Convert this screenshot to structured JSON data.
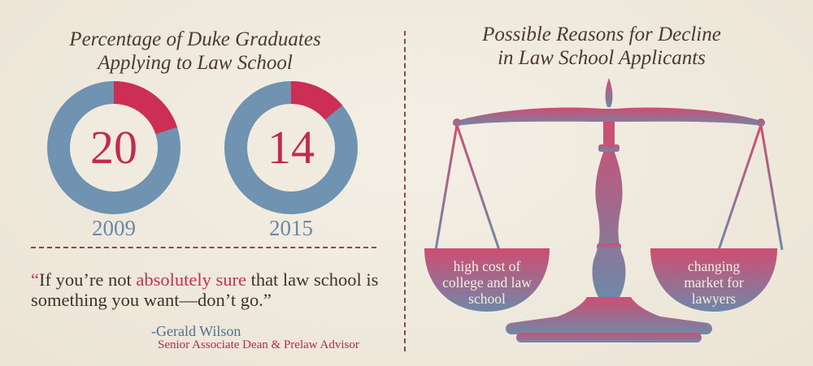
{
  "chart_data": {
    "type": "pie",
    "title_lines": [
      "Percentage of Duke Graduates",
      "Applying to Law School"
    ],
    "series": [
      {
        "label": "2009",
        "value": 20
      },
      {
        "label": "2015",
        "value": 14
      }
    ],
    "colors": {
      "highlight": "#cc2e56",
      "remainder": "#6f93b0",
      "hole": "#f1ebdf",
      "number": "#c42a4f"
    }
  },
  "right": {
    "title_lines": [
      "Possible Reasons for Decline",
      "in Law School Applicants"
    ],
    "reasons": [
      {
        "lines": [
          "high cost of",
          "college and law",
          "school"
        ]
      },
      {
        "lines": [
          "changing",
          "market for",
          "lawyers"
        ]
      }
    ],
    "colors": {
      "top": "#cf4d72",
      "bottom": "#6f88a8"
    }
  },
  "quote": {
    "open_mark": "“",
    "pre": "If you’re not ",
    "highlight": "absolutely sure",
    "post": " that law school is something you want—don’t go.”",
    "author": "-Gerald Wilson",
    "role": "Senior Associate Dean & Prelaw Advisor"
  }
}
